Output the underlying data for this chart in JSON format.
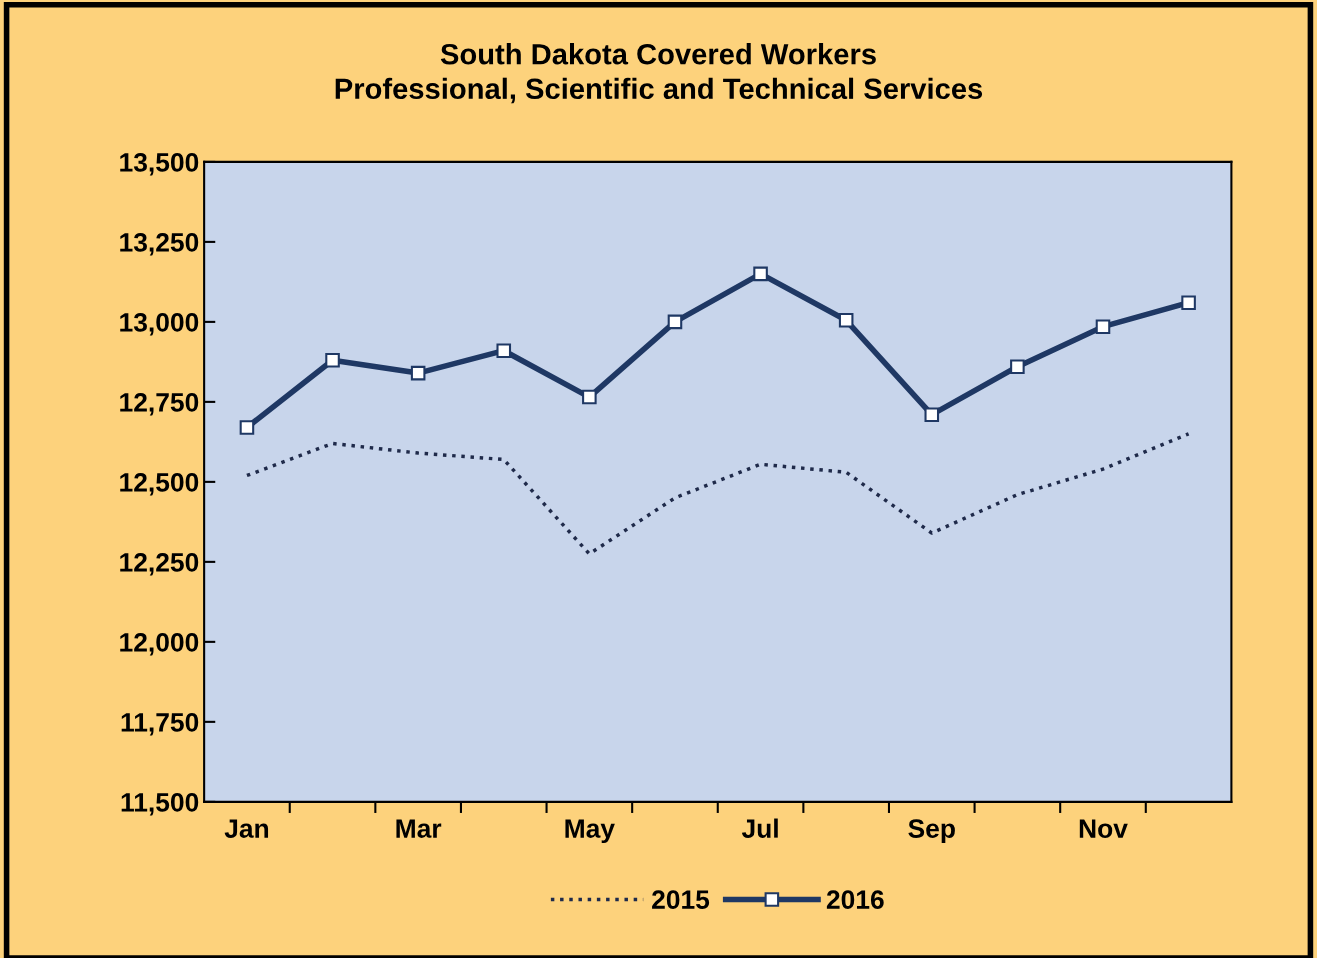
{
  "chart_data": {
    "type": "line",
    "title": "South Dakota Covered Workers\nProfessional, Scientific and Technical Services",
    "categories": [
      "Jan",
      null,
      "Mar",
      null,
      "May",
      null,
      "Jul",
      null,
      "Sep",
      null,
      "Nov",
      null
    ],
    "series": [
      {
        "name": "2015",
        "color": "#1f2a4a",
        "line_style": "dotted",
        "marker": "none",
        "values": [
          12520,
          12620,
          12590,
          12570,
          12275,
          12450,
          12555,
          12530,
          12340,
          12460,
          12540,
          12650
        ]
      },
      {
        "name": "2016",
        "color": "#1f3864",
        "line_style": "solid",
        "marker": "square",
        "values": [
          12670,
          12880,
          12840,
          12910,
          12765,
          13000,
          13150,
          13005,
          12710,
          12860,
          12985,
          13060
        ]
      }
    ],
    "ylim": [
      11500,
      13500
    ],
    "yticks": [
      {
        "value": 11500,
        "label": "11,500"
      },
      {
        "value": 11750,
        "label": "11,750"
      },
      {
        "value": 12000,
        "label": "12,000"
      },
      {
        "value": 12250,
        "label": "12,250"
      },
      {
        "value": 12500,
        "label": "12,500"
      },
      {
        "value": 12750,
        "label": "12,750"
      },
      {
        "value": 13000,
        "label": "13,000"
      },
      {
        "value": 13250,
        "label": "13,250"
      },
      {
        "value": 13500,
        "label": "13,500"
      }
    ],
    "grid": false,
    "legend": "bottom"
  }
}
